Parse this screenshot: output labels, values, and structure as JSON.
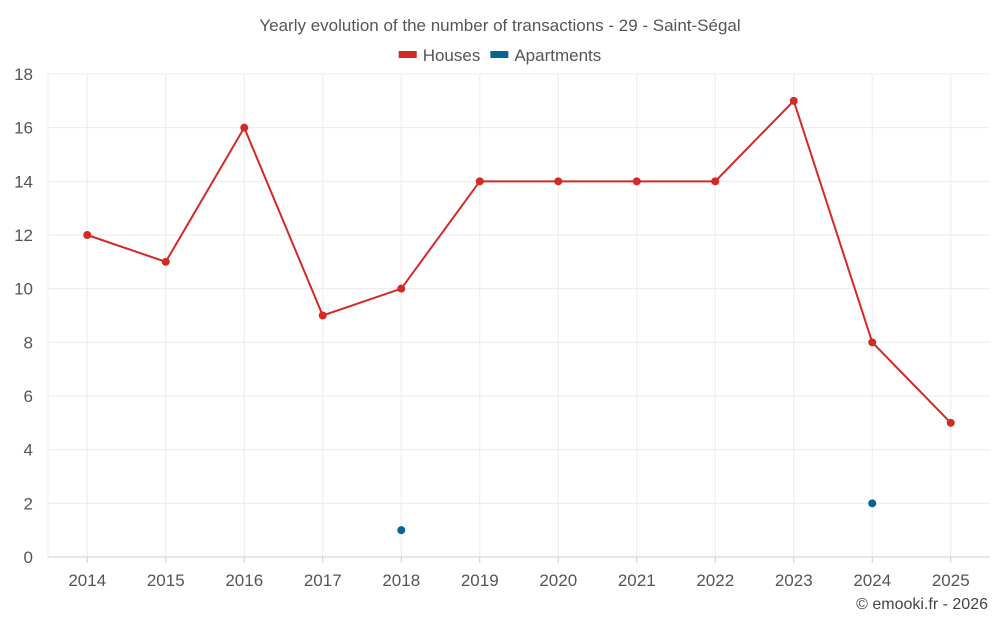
{
  "chart_data": {
    "type": "line",
    "title": "Yearly evolution of the number of transactions - 29 - Saint-Ségal",
    "categories": [
      "2014",
      "2015",
      "2016",
      "2017",
      "2018",
      "2019",
      "2020",
      "2021",
      "2022",
      "2023",
      "2024",
      "2025"
    ],
    "ylim": [
      0,
      18
    ],
    "yticks": [
      "0",
      "2",
      "4",
      "6",
      "8",
      "10",
      "12",
      "14",
      "16",
      "18"
    ],
    "grid": true,
    "legend_position": "top-center",
    "series": [
      {
        "name": "Houses",
        "color": "#d32a26",
        "values": [
          12,
          11,
          16,
          9,
          10,
          14,
          14,
          14,
          14,
          17,
          8,
          5
        ]
      },
      {
        "name": "Apartments",
        "color": "#0b6394",
        "values": [
          null,
          null,
          null,
          null,
          1,
          null,
          null,
          null,
          null,
          null,
          2,
          null
        ]
      }
    ],
    "xlabel": "",
    "ylabel": ""
  },
  "credit": "© emooki.fr - 2026"
}
